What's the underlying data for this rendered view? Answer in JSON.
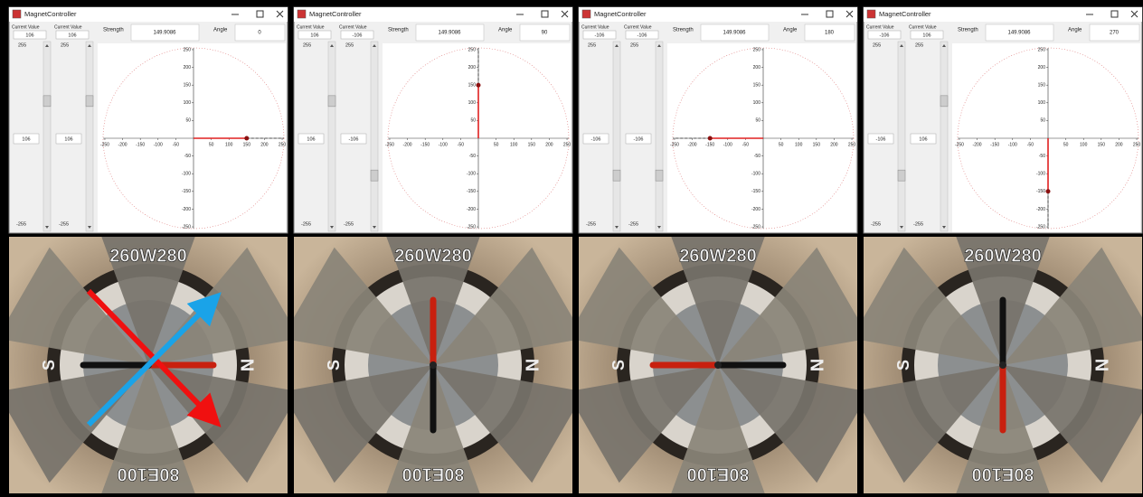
{
  "panels": [
    {
      "title": "MagnetController",
      "current_label_1": "Current Value",
      "current_label_2": "Current Value",
      "current_1": 106,
      "current_2": 106,
      "field_1": 106,
      "field_2": 106,
      "strength_label": "Strength",
      "strength": 149.9086,
      "angle_label": "Angle",
      "angle": 0
    },
    {
      "title": "MagnetController",
      "current_label_1": "Current Value",
      "current_label_2": "Current Value",
      "current_1": 106,
      "current_2": -106,
      "field_1": 106,
      "field_2": -106,
      "strength_label": "Strength",
      "strength": 149.9086,
      "angle_label": "Angle",
      "angle": 90
    },
    {
      "title": "MagnetController",
      "current_label_1": "Current Value",
      "current_label_2": "Current Value",
      "current_1": -106,
      "current_2": -106,
      "field_1": -106,
      "field_2": -106,
      "strength_label": "Strength",
      "strength": 149.9086,
      "angle_label": "Angle",
      "angle": 180
    },
    {
      "title": "MagnetController",
      "current_label_1": "Current Value",
      "current_label_2": "Current Value",
      "current_1": -106,
      "current_2": 106,
      "field_1": -106,
      "field_2": 106,
      "strength_label": "Strength",
      "strength": 149.9086,
      "angle_label": "Angle",
      "angle": 270
    }
  ],
  "slider_max": 255,
  "slider_min": -255,
  "plot": {
    "lim": [
      -255,
      255
    ],
    "xticks": [
      -250,
      -200,
      -150,
      -100,
      -50,
      50,
      100,
      150,
      200,
      250
    ],
    "yticks": [
      -250,
      -200,
      -150,
      -100,
      -50,
      50,
      100,
      150,
      200,
      250
    ]
  },
  "dial": {
    "top": "260W280",
    "bottom": "80E100",
    "left": "S",
    "right": "N"
  }
}
